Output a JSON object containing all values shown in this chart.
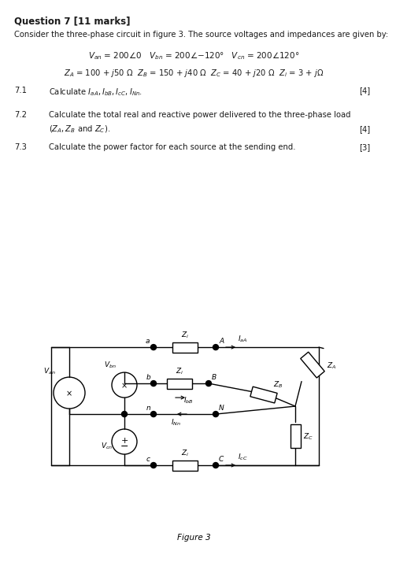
{
  "title": "Question 7 [11 marks]",
  "intro": "Consider the three-phase circuit in figure 3. The source voltages and impedances are given by:",
  "fig_label": "Figure 3",
  "bg_top": "#ffffff",
  "bg_bottom": "#ffffff",
  "divider_color": "#111111",
  "text_color": "#1a1a1a",
  "lw": 1.0,
  "fs_title": 8.5,
  "fs_body": 7.2,
  "fs_eq": 7.5,
  "fs_circuit": 6.5
}
